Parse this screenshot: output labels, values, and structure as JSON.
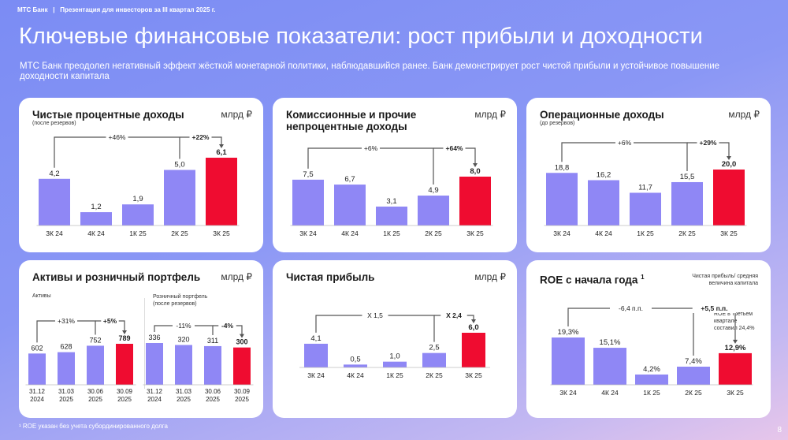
{
  "header": {
    "brand": "МТС Банк",
    "separator": "|",
    "deck": "Презентация для инвесторов за III квартал 2025 г."
  },
  "title": "Ключевые финансовые показатели: рост прибыли и доходности",
  "subtitle": "МТС Банк преодолел негативный эффект жёсткой монетарной политики, наблюдавшийся ранее. Банк демонстрирует рост чистой прибыли и устойчивое повышение доходности капитала",
  "footnote": "¹ ROE указан без учета субординированного долга",
  "page_number": "8",
  "colors": {
    "bar": "#8f87f5",
    "highlight": "#ef0c30",
    "line": "#555555"
  },
  "cards": [
    {
      "title": "Чистые процентные доходы",
      "note": "(после резервов)",
      "unit": "млрд ₽"
    },
    {
      "title": "Комиссионные и прочие непроцентные доходы",
      "unit": "млрд ₽"
    },
    {
      "title": "Операционные доходы",
      "note": "(до резервов)",
      "unit": "млрд ₽"
    },
    {
      "title": "Активы и розничный портфель",
      "unit": "млрд ₽",
      "sub1": "Активы",
      "sub2": "Розничный портфель (после резервов)"
    },
    {
      "title": "Чистая прибыль",
      "unit": "млрд ₽"
    },
    {
      "title": "ROE с начала года",
      "title_sup": "1",
      "note": "Чистая прибыль/ средняя величина капитала",
      "annotation": "ROE в третьем квартале составил 24,4%"
    }
  ],
  "chart_data": [
    {
      "type": "bar",
      "title": "Чистые процентные доходы",
      "categories": [
        "3К 24",
        "4К 24",
        "1К 25",
        "2К 25",
        "3К 25"
      ],
      "values": [
        4.2,
        1.2,
        1.9,
        5.0,
        6.1
      ],
      "labels": [
        "4,2",
        "1,2",
        "1,9",
        "5,0",
        "6,1"
      ],
      "changes": [
        {
          "from": "3К 24",
          "to": "3К 25",
          "label": "+46%"
        },
        {
          "from": "2К 25",
          "to": "3К 25",
          "label": "+22%"
        }
      ]
    },
    {
      "type": "bar",
      "title": "Комиссионные и прочие непроцентные доходы",
      "categories": [
        "3К 24",
        "4К 24",
        "1К 25",
        "2К 25",
        "3К 25"
      ],
      "values": [
        7.5,
        6.7,
        3.1,
        4.9,
        8.0
      ],
      "labels": [
        "7,5",
        "6,7",
        "3,1",
        "4,9",
        "8,0"
      ],
      "changes": [
        {
          "from": "3К 24",
          "to": "3К 25",
          "label": "+6%"
        },
        {
          "from": "2К 25",
          "to": "3К 25",
          "label": "+64%"
        }
      ]
    },
    {
      "type": "bar",
      "title": "Операционные доходы",
      "categories": [
        "3К 24",
        "4К 24",
        "1К 25",
        "2К 25",
        "3К 25"
      ],
      "values": [
        18.8,
        16.2,
        11.7,
        15.5,
        20.0
      ],
      "labels": [
        "18,8",
        "16,2",
        "11,7",
        "15,5",
        "20,0"
      ],
      "changes": [
        {
          "from": "3К 24",
          "to": "3К 25",
          "label": "+6%"
        },
        {
          "from": "2К 25",
          "to": "3К 25",
          "label": "+29%"
        }
      ]
    },
    {
      "type": "bar",
      "title": "Активы",
      "categories": [
        "31.12 2024",
        "31.03 2025",
        "30.06 2025",
        "30.09 2025"
      ],
      "values": [
        602,
        628,
        752,
        789
      ],
      "labels": [
        "602",
        "628",
        "752",
        "789"
      ],
      "changes": [
        {
          "from": "31.12 2024",
          "to": "30.09 2025",
          "label": "+31%"
        },
        {
          "from": "30.06 2025",
          "to": "30.09 2025",
          "label": "+5%"
        }
      ]
    },
    {
      "type": "bar",
      "title": "Розничный портфель (после резервов)",
      "categories": [
        "31.12 2024",
        "31.03 2025",
        "30.06 2025",
        "30.09 2025"
      ],
      "values": [
        336,
        320,
        311,
        300
      ],
      "labels": [
        "336",
        "320",
        "311",
        "300"
      ],
      "changes": [
        {
          "from": "31.12 2024",
          "to": "30.09 2025",
          "label": "-11%"
        },
        {
          "from": "30.06 2025",
          "to": "30.09 2025",
          "label": "-4%"
        }
      ]
    },
    {
      "type": "bar",
      "title": "Чистая прибыль",
      "categories": [
        "3К 24",
        "4К 24",
        "1К 25",
        "2К 25",
        "3К 25"
      ],
      "values": [
        4.1,
        0.5,
        1.0,
        2.5,
        6.0
      ],
      "labels": [
        "4,1",
        "0,5",
        "1,0",
        "2,5",
        "6,0"
      ],
      "changes": [
        {
          "from": "3К 24",
          "to": "3К 25",
          "label": "X 1,5"
        },
        {
          "from": "2К 25",
          "to": "3К 25",
          "label": "X 2,4"
        }
      ]
    },
    {
      "type": "bar",
      "title": "ROE с начала года",
      "categories": [
        "3К 24",
        "4К 24",
        "1К 25",
        "2К 25",
        "3К 25"
      ],
      "values": [
        19.3,
        15.1,
        4.2,
        7.4,
        12.9
      ],
      "labels": [
        "19,3%",
        "15,1%",
        "4,2%",
        "7,4%",
        "12,9%"
      ],
      "changes": [
        {
          "from": "3К 24",
          "to": "3К 25",
          "label": "-6,4 п.п."
        },
        {
          "from": "2К 25",
          "to": "3К 25",
          "label": "+5,5 п.п."
        }
      ]
    }
  ]
}
